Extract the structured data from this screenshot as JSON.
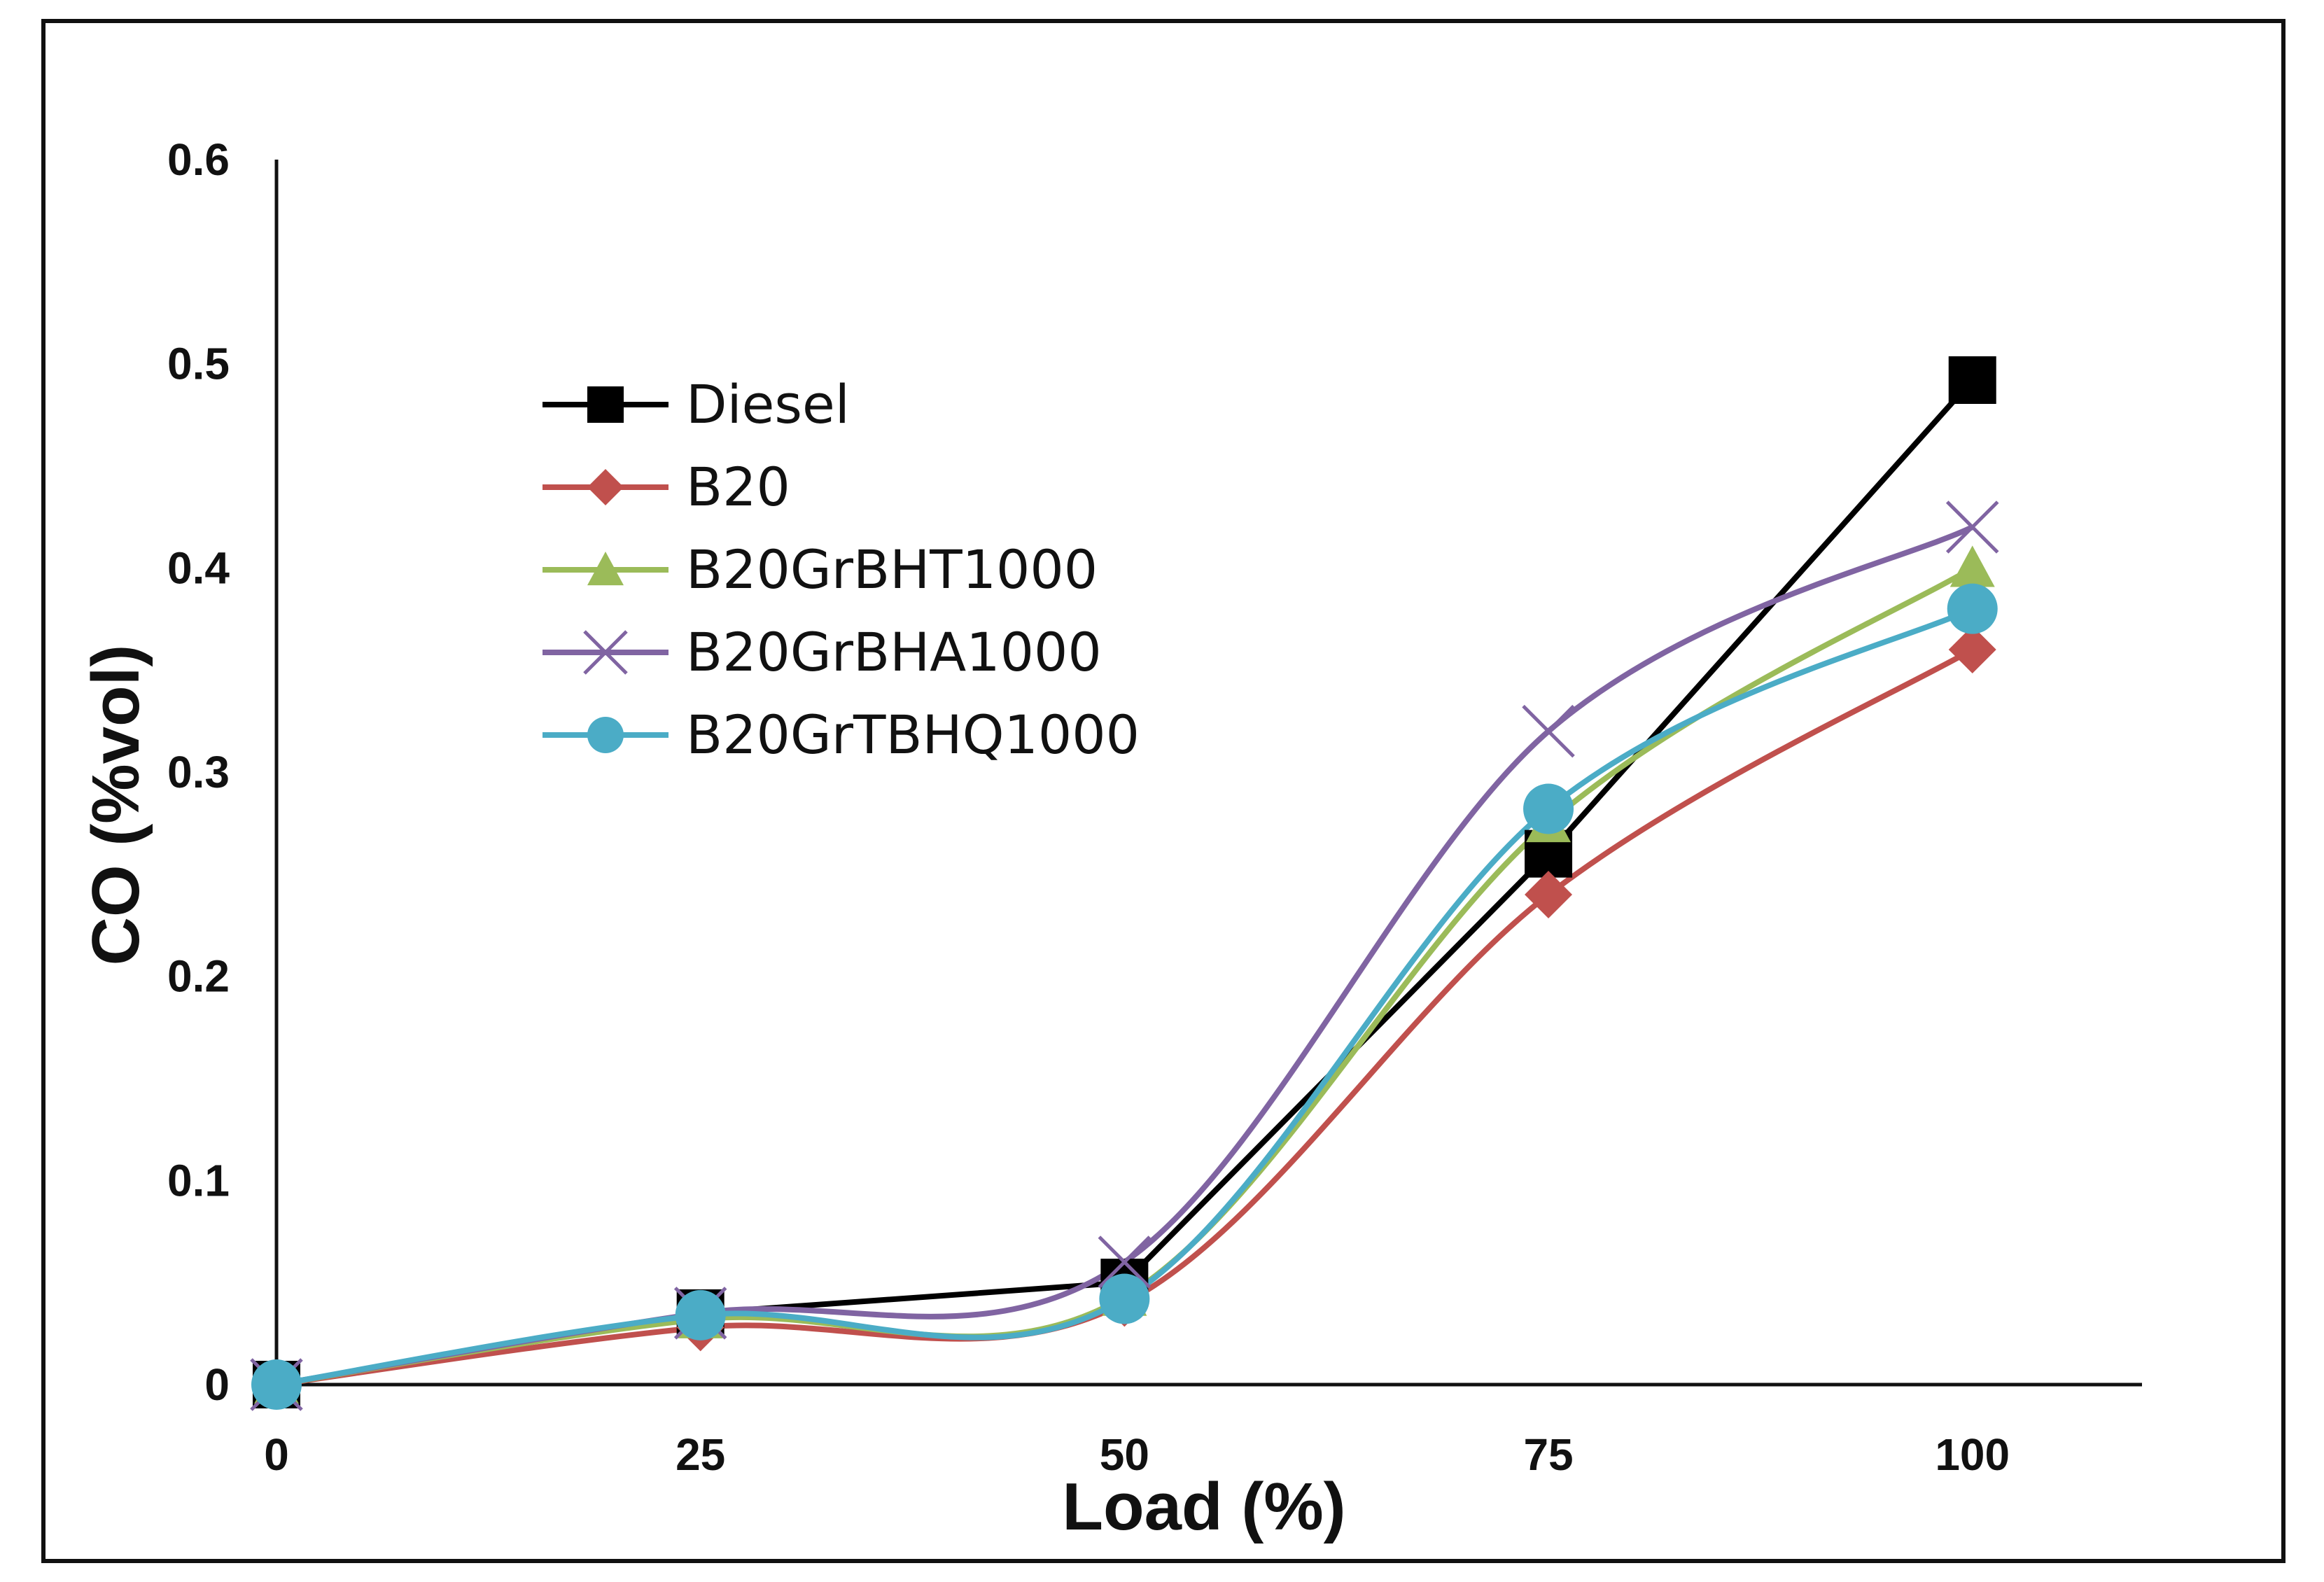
{
  "chart_data": {
    "type": "line",
    "title": "",
    "xlabel": "Load (%)",
    "ylabel": "CO  (%vol)",
    "x": [
      0,
      25,
      50,
      75,
      100
    ],
    "xlim": [
      0,
      110
    ],
    "ylim": [
      0,
      0.6
    ],
    "x_ticks": [
      "0",
      "25",
      "50",
      "75",
      "100"
    ],
    "y_ticks": [
      "0",
      "0.1",
      "0.2",
      "0.3",
      "0.4",
      "0.5",
      "0.6"
    ],
    "grid": false,
    "legend_position": "top-left",
    "series": [
      {
        "name": "Diesel",
        "values": [
          0,
          0.035,
          0.05,
          0.26,
          0.492
        ],
        "color": "#000000",
        "marker": "square",
        "smooth": false
      },
      {
        "name": "B20",
        "values": [
          0,
          0.028,
          0.04,
          0.24,
          0.36
        ],
        "color": "#c0504d",
        "marker": "diamond",
        "smooth": true
      },
      {
        "name": "B20GrBHT1000",
        "values": [
          0,
          0.032,
          0.043,
          0.275,
          0.4
        ],
        "color": "#9bbb59",
        "marker": "triangle",
        "smooth": true
      },
      {
        "name": "B20GrBHA1000",
        "values": [
          0,
          0.035,
          0.06,
          0.32,
          0.42
        ],
        "color": "#8064a2",
        "marker": "x",
        "smooth": true
      },
      {
        "name": "B20GrTBHQ1000",
        "values": [
          0,
          0.034,
          0.042,
          0.282,
          0.38
        ],
        "color": "#4bacc6",
        "marker": "circle",
        "smooth": true
      }
    ]
  }
}
